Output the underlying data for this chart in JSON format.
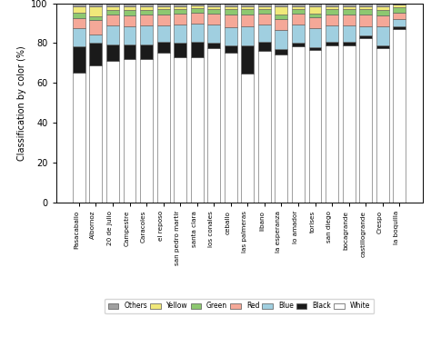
{
  "categories": [
    "Pasacaballo",
    "Albornoz",
    "20 de Julio",
    "Campestre",
    "Caracoles",
    "el reposo",
    "san pedro martir",
    "santa clara",
    "los conales",
    "ceballo",
    "las palmeras",
    "libano",
    "la esperanza",
    "lo amador",
    "torises",
    "san diego",
    "bocagrande",
    "castillogrande",
    "Crespo",
    "la boquilla"
  ],
  "colors": {
    "Others": "#a0a0a0",
    "Yellow": "#f0e87a",
    "Green": "#8dc870",
    "Red": "#f5a898",
    "Blue": "#a0cfe0",
    "Black": "#1a1a1a",
    "White": "#ffffff"
  },
  "color_order": [
    "White",
    "Black",
    "Blue",
    "Red",
    "Green",
    "Yellow",
    "Others"
  ],
  "data": {
    "Others": [
      1.5,
      1.5,
      1.5,
      1.5,
      1.5,
      1.5,
      1.5,
      1.5,
      1.5,
      1.5,
      1.5,
      1.5,
      1.5,
      1.5,
      1.5,
      1.5,
      1.5,
      1.5,
      1.5,
      1.5
    ],
    "Yellow": [
      3.0,
      5.0,
      2.0,
      2.0,
      2.0,
      1.5,
      1.5,
      1.5,
      1.5,
      1.5,
      1.5,
      1.5,
      4.0,
      1.5,
      3.5,
      1.5,
      1.5,
      1.5,
      2.0,
      1.5
    ],
    "Green": [
      3.0,
      2.0,
      2.0,
      2.5,
      2.0,
      2.5,
      2.0,
      2.0,
      2.0,
      2.5,
      2.5,
      2.0,
      2.5,
      2.0,
      2.0,
      2.5,
      2.5,
      2.5,
      2.5,
      2.5
    ],
    "Red": [
      5.0,
      7.0,
      5.5,
      5.5,
      5.5,
      5.5,
      5.5,
      5.5,
      5.5,
      6.5,
      6.0,
      5.5,
      5.5,
      5.5,
      5.5,
      5.5,
      5.5,
      6.0,
      5.5,
      3.5
    ],
    "Blue": [
      9.0,
      4.5,
      9.5,
      9.0,
      9.5,
      8.5,
      9.5,
      9.5,
      9.5,
      9.0,
      9.5,
      9.0,
      9.5,
      9.5,
      9.5,
      8.5,
      8.5,
      4.5,
      9.5,
      3.5
    ],
    "Black": [
      13.5,
      11.0,
      8.5,
      7.5,
      7.5,
      5.5,
      7.0,
      7.5,
      2.5,
      4.0,
      14.5,
      4.5,
      2.5,
      1.5,
      1.5,
      1.5,
      1.5,
      1.5,
      1.5,
      1.5
    ],
    "White": [
      65.0,
      69.0,
      71.0,
      72.0,
      72.0,
      75.0,
      73.0,
      73.0,
      77.5,
      75.0,
      64.5,
      76.0,
      74.5,
      78.5,
      76.5,
      79.0,
      79.0,
      82.5,
      77.5,
      87.0
    ]
  },
  "ylabel": "Classification by color (%)",
  "ylim": [
    0,
    100
  ],
  "yticks": [
    0,
    20,
    40,
    60,
    80,
    100
  ],
  "bar_width": 0.75,
  "edge_color": "#555555",
  "edge_linewidth": 0.4
}
